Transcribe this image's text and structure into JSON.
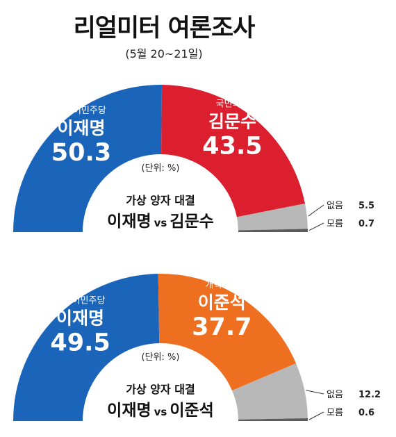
{
  "header": {
    "title": "리얼미터 여론조사",
    "subtitle": "(5월 20~21일)"
  },
  "chart_data": [
    {
      "type": "pie",
      "shape": "semicircle-donut",
      "unit_label": "(단위: %)",
      "center_caption": "가상 양자 대결",
      "matchup": {
        "left": "이재명",
        "vs": "vs",
        "right": "김문수"
      },
      "slices": [
        {
          "party": "더불어민주당",
          "name": "이재명",
          "value": 50.3,
          "display": "50.3",
          "color": "#1a64ba"
        },
        {
          "party": "국민의힘",
          "name": "김문수",
          "value": 43.5,
          "display": "43.5",
          "color": "#db1f2e"
        },
        {
          "name": "없음",
          "value": 5.5,
          "display": "5.5",
          "color": "#b8b8b8"
        },
        {
          "name": "모름",
          "value": 0.7,
          "display": "0.7",
          "color": "#5b5b5b"
        }
      ]
    },
    {
      "type": "pie",
      "shape": "semicircle-donut",
      "unit_label": "(단위: %)",
      "center_caption": "가상 양자 대결",
      "matchup": {
        "left": "이재명",
        "vs": "vs",
        "right": "이준석"
      },
      "slices": [
        {
          "party": "더불어민주당",
          "name": "이재명",
          "value": 49.5,
          "display": "49.5",
          "color": "#1a64ba"
        },
        {
          "party": "개혁신당",
          "name": "이준석",
          "value": 37.7,
          "display": "37.7",
          "color": "#ef6f21"
        },
        {
          "name": "없음",
          "value": 12.2,
          "display": "12.2",
          "color": "#b8b8b8"
        },
        {
          "name": "모름",
          "value": 0.6,
          "display": "0.6",
          "color": "#5b5b5b"
        }
      ]
    }
  ]
}
